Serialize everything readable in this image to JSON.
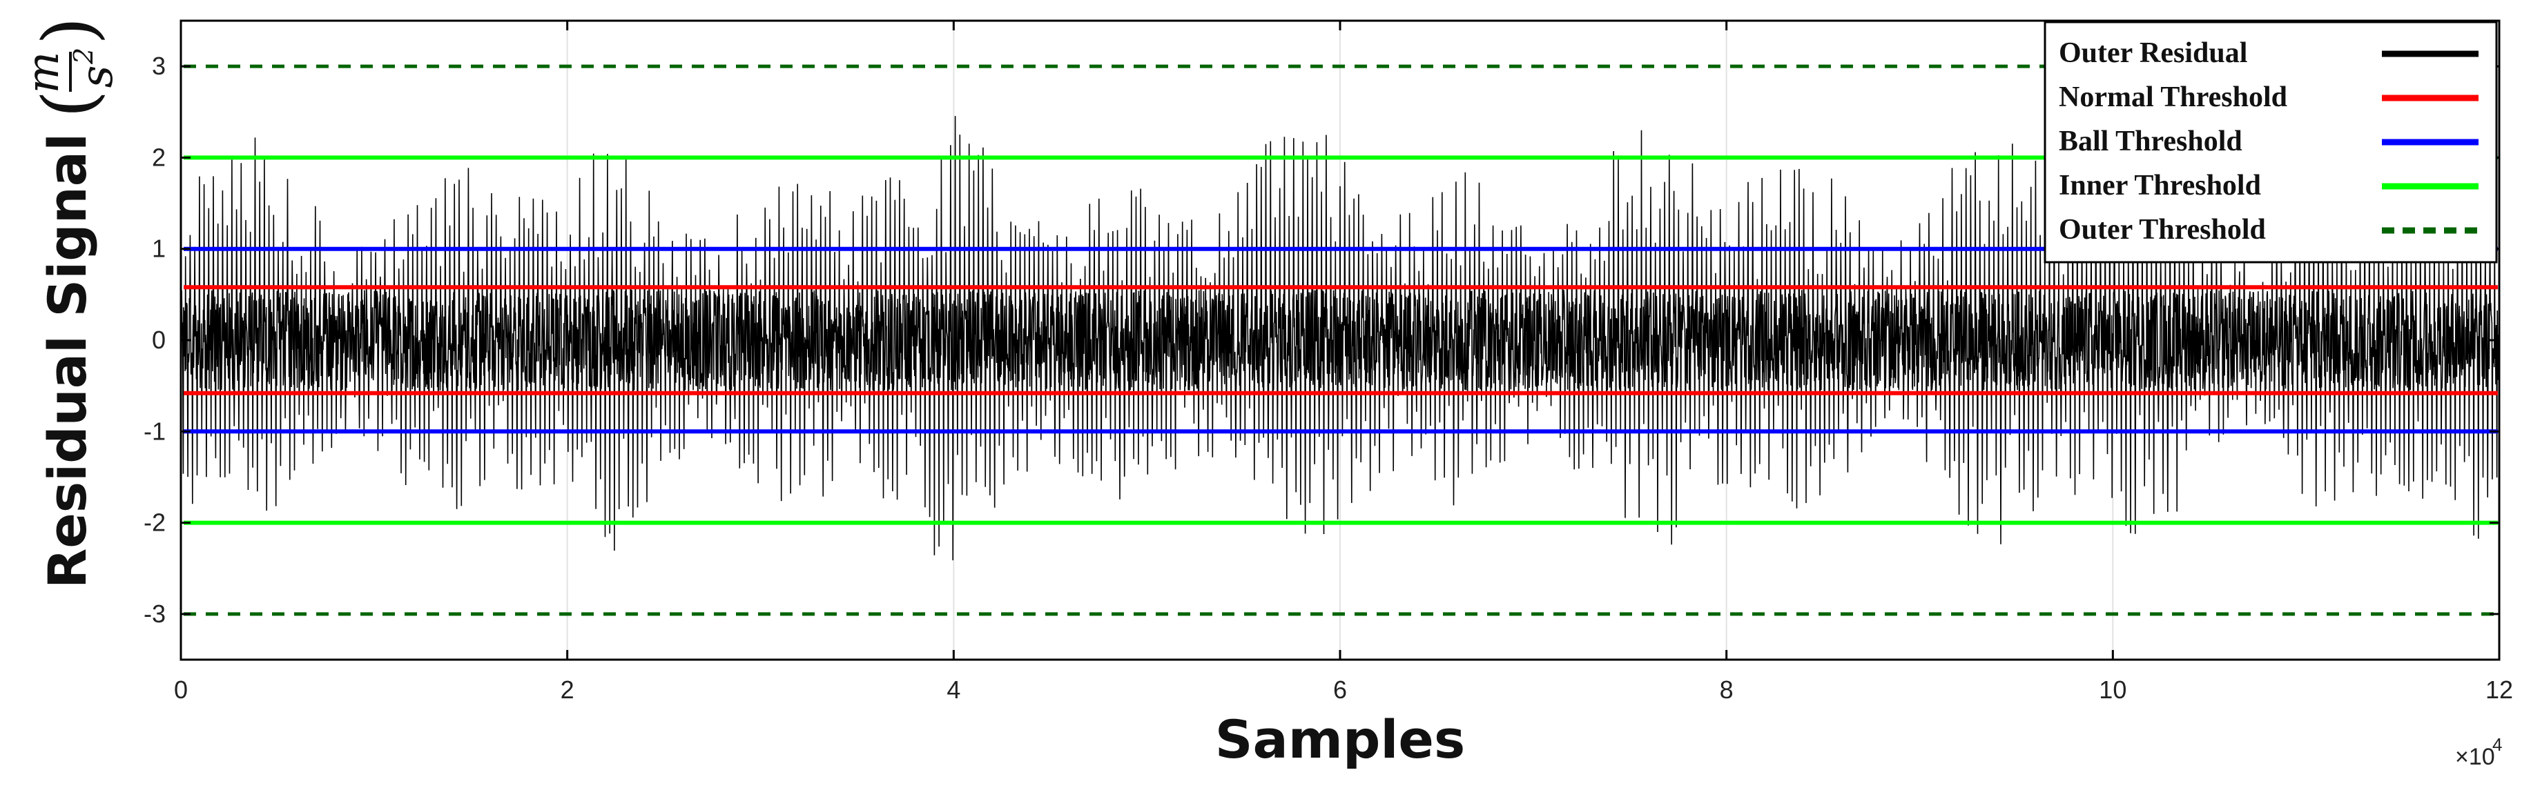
{
  "chart_data": {
    "type": "line",
    "xlabel": "Samples",
    "ylabel": "Residual Signal",
    "ylabel_unit": {
      "numerator": "m",
      "denominator": "s",
      "power": "2"
    },
    "x_multiplier": "×10",
    "x_multiplier_exp": "4",
    "xlim": [
      0,
      12
    ],
    "ylim": [
      -3.5,
      3.5
    ],
    "xticks": [
      "0",
      "2",
      "4",
      "6",
      "8",
      "10",
      "12"
    ],
    "yticks": [
      "-3",
      "-2",
      "-1",
      "0",
      "1",
      "2",
      "3"
    ],
    "grid": true,
    "legend_position": "top-right",
    "series": [
      {
        "name": "Outer Residual",
        "color": "#000000",
        "style": "solid",
        "description_values": {
          "typical_amplitude": 0.5,
          "peak_amplitude": 2.5,
          "n_samples_x1e4": 12
        }
      },
      {
        "name": "Normal Threshold",
        "color": "#ff0000",
        "style": "solid",
        "values": [
          0.58,
          -0.58
        ]
      },
      {
        "name": "Ball Threshold",
        "color": "#0000ff",
        "style": "solid",
        "values": [
          1.0,
          -1.0
        ]
      },
      {
        "name": "Inner Threshold",
        "color": "#00ff00",
        "style": "solid",
        "values": [
          2.0,
          -2.0
        ]
      },
      {
        "name": "Outer Threshold",
        "color": "#006400",
        "style": "dashed",
        "values": [
          3.0,
          -3.0
        ]
      }
    ]
  }
}
